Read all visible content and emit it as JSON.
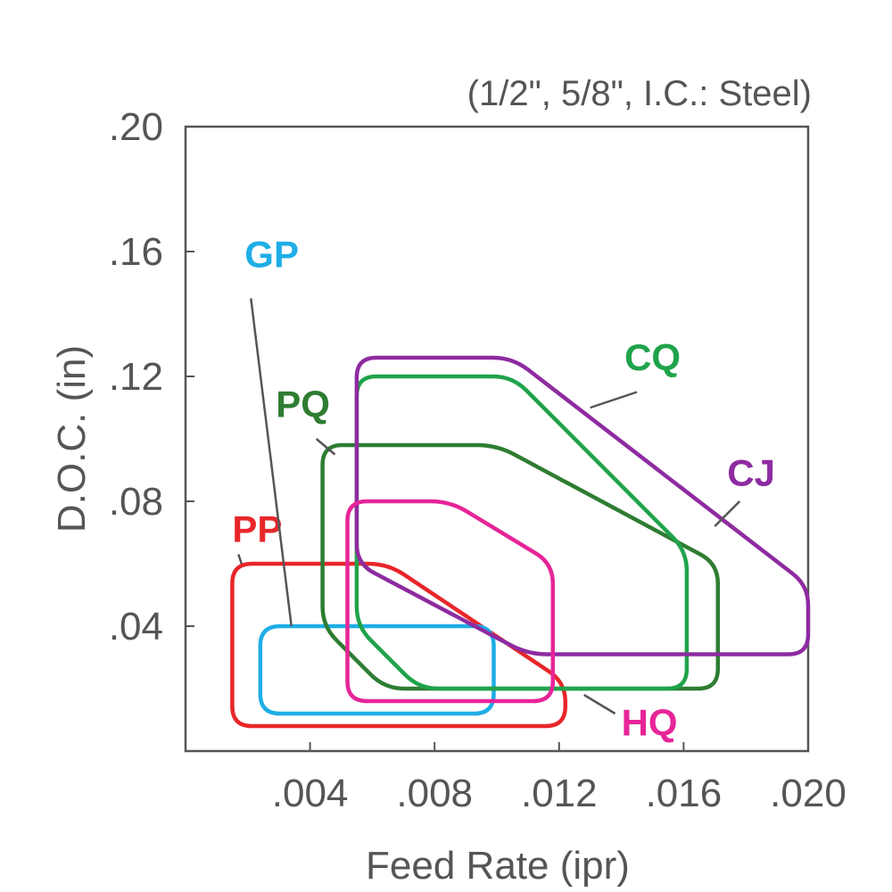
{
  "chart_data": {
    "type": "region",
    "note": "(1/2\", 5/8\", I.C.: Steel)",
    "xlabel": "Feed Rate (ipr)",
    "ylabel": "D.O.C. (in)",
    "xlim": [
      0,
      0.02
    ],
    "ylim": [
      0,
      0.2
    ],
    "x_ticks": [
      {
        "value": 0.004,
        "label": ".004"
      },
      {
        "value": 0.008,
        "label": ".008"
      },
      {
        "value": 0.012,
        "label": ".012"
      },
      {
        "value": 0.016,
        "label": ".016"
      },
      {
        "value": 0.02,
        "label": ".020"
      }
    ],
    "y_ticks": [
      {
        "value": 0.04,
        "label": ".04"
      },
      {
        "value": 0.08,
        "label": ".08"
      },
      {
        "value": 0.12,
        "label": ".12"
      },
      {
        "value": 0.16,
        "label": ".16"
      },
      {
        "value": 0.2,
        "label": ".20"
      }
    ],
    "grid": false,
    "regions": [
      {
        "name": "PP",
        "color": "#e8262a",
        "label_at": [
          0.0015,
          0.067
        ],
        "leader": [
          [
            0.0017,
            0.063
          ],
          [
            0.0018,
            0.06
          ]
        ],
        "vertices": [
          [
            0.0015,
            0.008
          ],
          [
            0.0122,
            0.008
          ],
          [
            0.0122,
            0.022
          ],
          [
            0.0065,
            0.06
          ],
          [
            0.0015,
            0.06
          ]
        ]
      },
      {
        "name": "GP",
        "color": "#1eaee6",
        "label_at": [
          0.0019,
          0.155
        ],
        "leader": [
          [
            0.0021,
            0.145
          ],
          [
            0.0034,
            0.04
          ]
        ],
        "vertices": [
          [
            0.0024,
            0.012
          ],
          [
            0.0099,
            0.012
          ],
          [
            0.0099,
            0.04
          ],
          [
            0.0024,
            0.04
          ]
        ]
      },
      {
        "name": "PQ",
        "color": "#2e7d32",
        "label_at": [
          0.0029,
          0.107
        ],
        "leader": [
          [
            0.0042,
            0.1
          ],
          [
            0.0048,
            0.095
          ]
        ],
        "vertices": [
          [
            0.0044,
            0.04
          ],
          [
            0.0064,
            0.02
          ],
          [
            0.0171,
            0.02
          ],
          [
            0.0171,
            0.06
          ],
          [
            0.01,
            0.098
          ],
          [
            0.0044,
            0.098
          ]
        ]
      },
      {
        "name": "CQ",
        "color": "#1fa34a",
        "label_at": [
          0.0141,
          0.122
        ],
        "leader": [
          [
            0.0145,
            0.115
          ],
          [
            0.013,
            0.11
          ]
        ],
        "vertices": [
          [
            0.0055,
            0.04
          ],
          [
            0.0075,
            0.02
          ],
          [
            0.0161,
            0.02
          ],
          [
            0.0161,
            0.064
          ],
          [
            0.0105,
            0.12
          ],
          [
            0.0055,
            0.12
          ]
        ]
      },
      {
        "name": "CJ",
        "color": "#8e2ba0",
        "label_at": [
          0.0174,
          0.085
        ],
        "leader": [
          [
            0.0178,
            0.08
          ],
          [
            0.017,
            0.072
          ]
        ],
        "vertices": [
          [
            0.0055,
            0.06
          ],
          [
            0.011,
            0.031
          ],
          [
            0.02,
            0.031
          ],
          [
            0.02,
            0.053
          ],
          [
            0.0105,
            0.126
          ],
          [
            0.0055,
            0.126
          ]
        ]
      },
      {
        "name": "HQ",
        "color": "#e62598",
        "label_at": [
          0.014,
          0.005
        ],
        "leader": [
          [
            0.0128,
            0.018
          ],
          [
            0.0138,
            0.012
          ]
        ],
        "vertices": [
          [
            0.0052,
            0.016
          ],
          [
            0.0118,
            0.016
          ],
          [
            0.0118,
            0.06
          ],
          [
            0.0085,
            0.08
          ],
          [
            0.0052,
            0.08
          ]
        ]
      }
    ]
  }
}
